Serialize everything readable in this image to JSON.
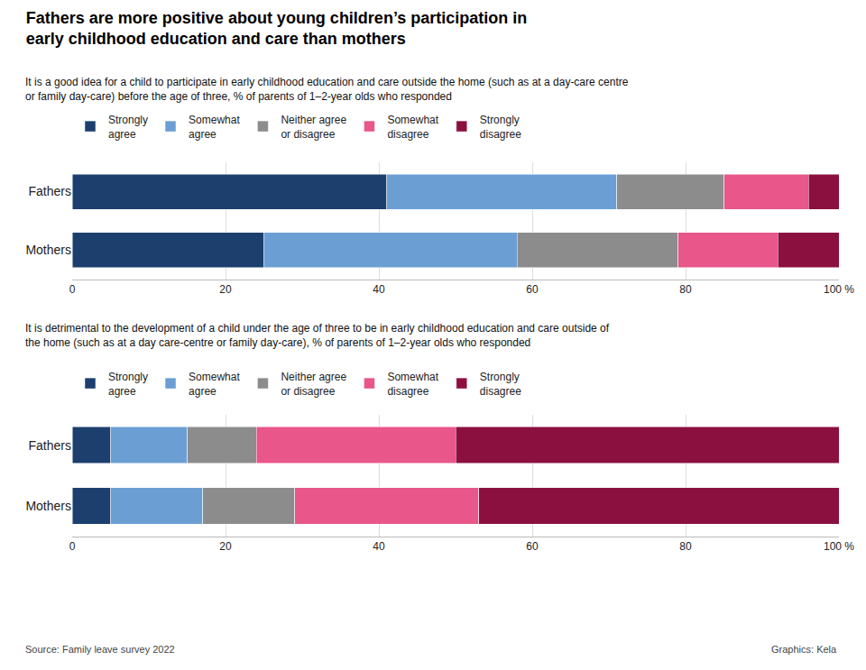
{
  "chart_data": [
    {
      "type": "bar",
      "title": "Fathers are more positive about young children’s participation in\nearly childhood education and care than mothers",
      "subtitle": "It is a good idea for a child to participate in early childhood education and care outside the home (such as at a day-care centre\nor family day-care) before the age of three, % of parents of 1–2-year olds who responded",
      "orientation": "horizontal",
      "stacked": true,
      "categories": [
        "Fathers",
        "Mothers"
      ],
      "series": [
        {
          "name": "Strongly\nagree",
          "color": "#1c3f6e",
          "values": [
            41,
            25
          ]
        },
        {
          "name": "Somewhat\nagree",
          "color": "#6b9fd4",
          "values": [
            30,
            33
          ]
        },
        {
          "name": "Neither agree\nor disagree",
          "color": "#8c8c8c",
          "values": [
            14,
            21
          ]
        },
        {
          "name": "Somewhat\ndisagree",
          "color": "#e8568a",
          "values": [
            11,
            13
          ]
        },
        {
          "name": "Strongly\ndisagree",
          "color": "#8b1040",
          "values": [
            4,
            8
          ]
        }
      ],
      "xlim": [
        0,
        100
      ],
      "xticks": [
        0,
        20,
        40,
        60,
        80,
        {
          "value": 100,
          "label": "100 %"
        }
      ],
      "grid": true,
      "legend": "upper left"
    },
    {
      "type": "bar",
      "subtitle": "It is detrimental to the development of a child under the age of three to be in early childhood education and care outside of\nthe home (such as at a day care-centre or family day-care), % of parents of 1–2-year olds who responded",
      "orientation": "horizontal",
      "stacked": true,
      "categories": [
        "Fathers",
        "Mothers"
      ],
      "series": [
        {
          "name": "Strongly\nagree",
          "color": "#1c3f6e",
          "values": [
            5,
            5
          ]
        },
        {
          "name": "Somewhat\nagree",
          "color": "#6b9fd4",
          "values": [
            10,
            12
          ]
        },
        {
          "name": "Neither agree\nor disagree",
          "color": "#8c8c8c",
          "values": [
            9,
            12
          ]
        },
        {
          "name": "Somewhat\ndisagree",
          "color": "#e8568a",
          "values": [
            26,
            24
          ]
        },
        {
          "name": "Strongly\ndisagree",
          "color": "#8b1040",
          "values": [
            50,
            47
          ]
        }
      ],
      "xlim": [
        0,
        100
      ],
      "xticks": [
        0,
        20,
        40,
        60,
        80,
        {
          "value": 100,
          "label": "100 %"
        }
      ],
      "grid": true,
      "legend": "upper left",
      "annotations": [
        "Source: Family leave survey 2022",
        "Graphics: Kela"
      ]
    }
  ]
}
